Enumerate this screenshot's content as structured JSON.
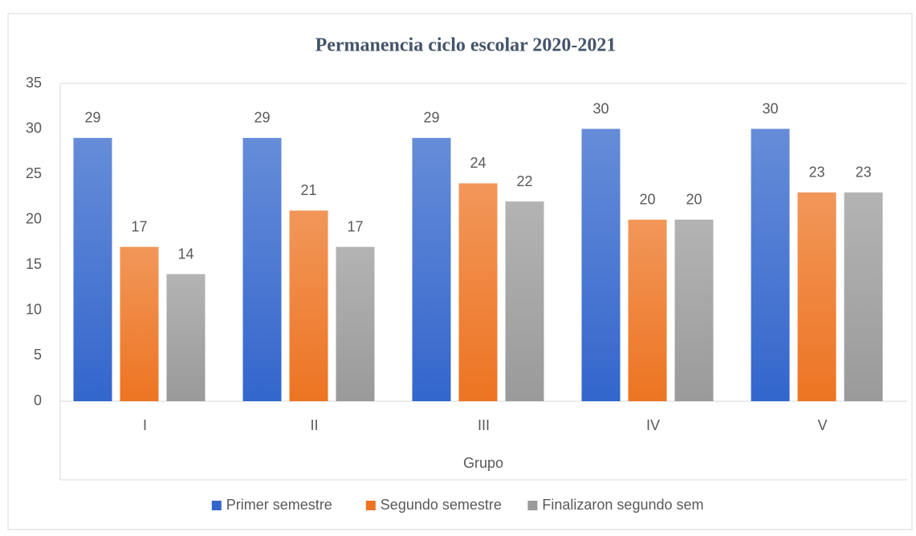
{
  "chart_data": {
    "type": "bar",
    "title": "Permanencia ciclo escolar 2020-2021",
    "x_label": "Grupo",
    "categories": [
      "I",
      "II",
      "III",
      "IV",
      "V"
    ],
    "series": [
      {
        "name": "Primer semestre",
        "color": "#3366cc",
        "values": [
          29,
          29,
          29,
          30,
          30
        ]
      },
      {
        "name": "Segundo semestre",
        "color": "#ed7422",
        "values": [
          17,
          21,
          24,
          20,
          23
        ]
      },
      {
        "name": "Finalizaron segundo sem",
        "color": "#9a9a9a",
        "values": [
          14,
          17,
          22,
          20,
          23
        ]
      }
    ],
    "ylim": [
      0,
      35
    ],
    "yticks": [
      0,
      5,
      10,
      15,
      20,
      25,
      30,
      35
    ],
    "grid": false,
    "legend": "bottom"
  }
}
